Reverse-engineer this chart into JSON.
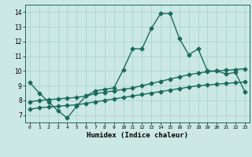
{
  "title": "",
  "xlabel": "Humidex (Indice chaleur)",
  "bg_color": "#cce8e4",
  "grid_color": "#aad4cc",
  "line_color": "#1a6b5e",
  "xlim": [
    -0.5,
    23.5
  ],
  "ylim": [
    6.5,
    14.5
  ],
  "xticks": [
    0,
    1,
    2,
    3,
    4,
    5,
    6,
    7,
    8,
    9,
    10,
    11,
    12,
    13,
    14,
    15,
    16,
    17,
    18,
    19,
    20,
    21,
    22,
    23
  ],
  "yticks": [
    7,
    8,
    9,
    10,
    11,
    12,
    13,
    14
  ],
  "line1_x": [
    0,
    1,
    2,
    3,
    4,
    5,
    6,
    7,
    8,
    9,
    10,
    11,
    12,
    13,
    14,
    15,
    16,
    17,
    18,
    19,
    20,
    21,
    22,
    23
  ],
  "line1_y": [
    9.2,
    8.5,
    7.9,
    7.3,
    6.8,
    7.6,
    8.3,
    8.65,
    8.75,
    8.85,
    10.1,
    11.5,
    11.5,
    12.9,
    13.9,
    13.9,
    12.2,
    11.1,
    11.5,
    10.0,
    10.0,
    9.8,
    9.9,
    8.6
  ],
  "line2_x": [
    0,
    1,
    2,
    3,
    4,
    5,
    6,
    7,
    8,
    9,
    10,
    11,
    12,
    13,
    14,
    15,
    16,
    17,
    18,
    19,
    20,
    21,
    22,
    23
  ],
  "line2_y": [
    7.9,
    8.0,
    8.05,
    8.1,
    8.15,
    8.2,
    8.3,
    8.45,
    8.55,
    8.65,
    8.75,
    8.85,
    9.0,
    9.15,
    9.3,
    9.45,
    9.6,
    9.75,
    9.85,
    9.95,
    10.0,
    10.05,
    10.1,
    10.15
  ],
  "line3_x": [
    0,
    1,
    2,
    3,
    4,
    5,
    6,
    7,
    8,
    9,
    10,
    11,
    12,
    13,
    14,
    15,
    16,
    17,
    18,
    19,
    20,
    21,
    22,
    23
  ],
  "line3_y": [
    7.4,
    7.5,
    7.55,
    7.6,
    7.65,
    7.7,
    7.8,
    7.9,
    8.0,
    8.1,
    8.2,
    8.3,
    8.4,
    8.5,
    8.6,
    8.7,
    8.8,
    8.9,
    9.0,
    9.05,
    9.1,
    9.15,
    9.2,
    9.25
  ]
}
